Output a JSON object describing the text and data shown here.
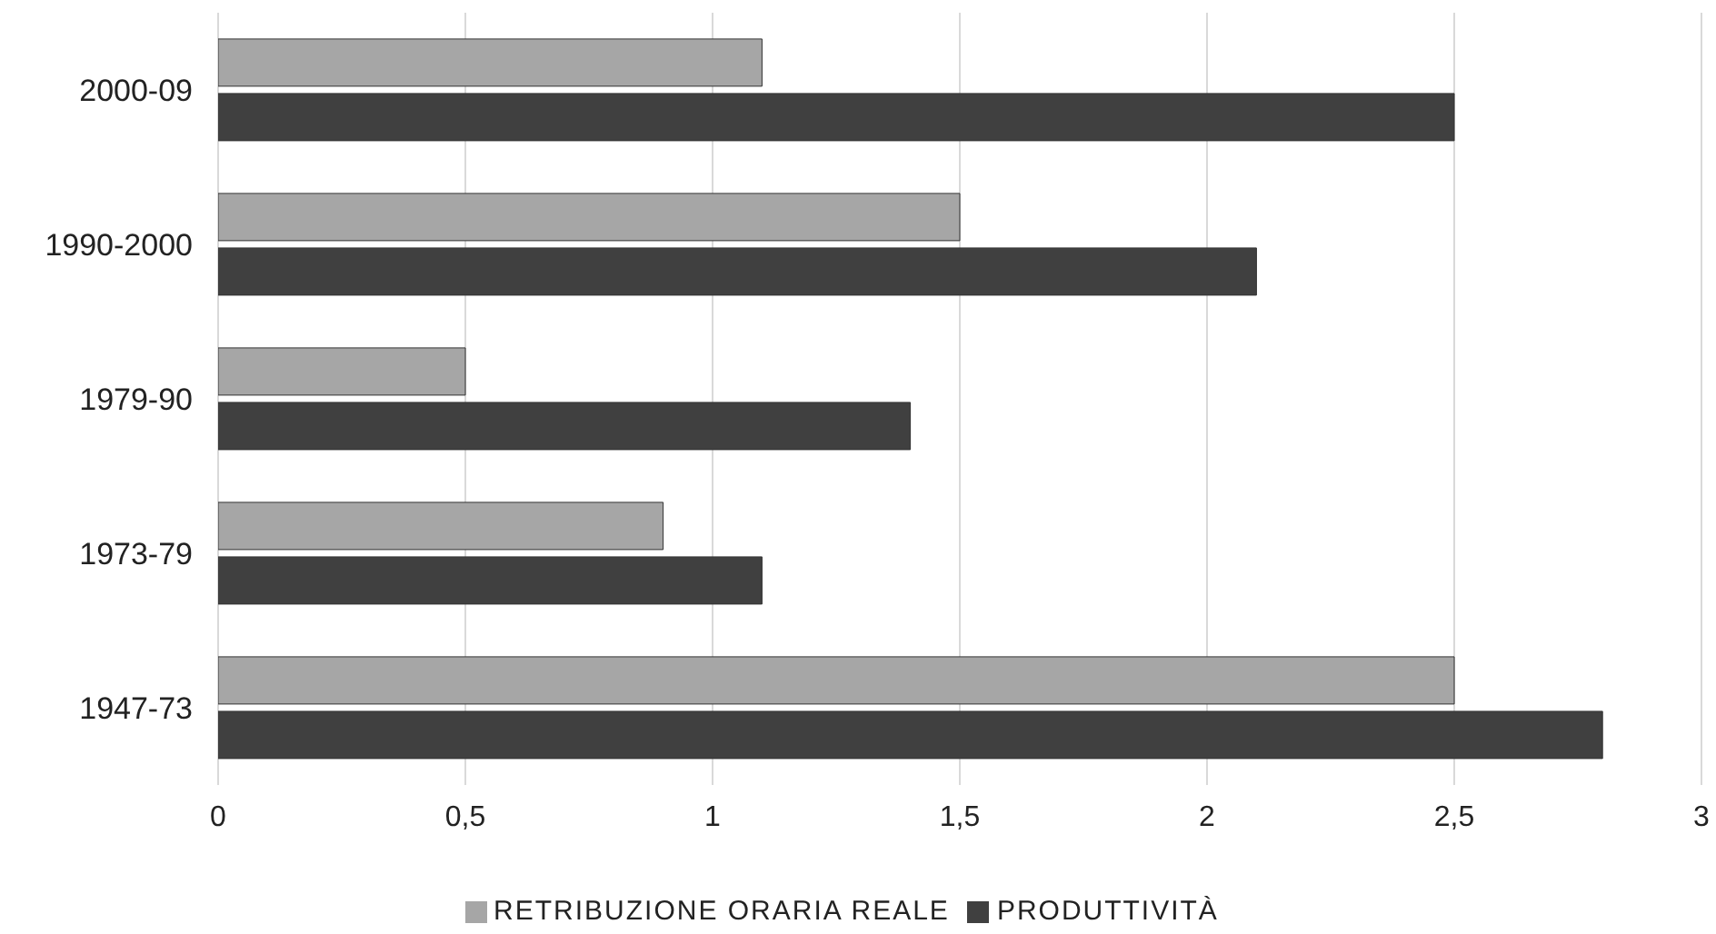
{
  "chart_data": {
    "type": "bar",
    "orientation": "horizontal",
    "categories": [
      "2000-09",
      "1990-2000",
      "1979-90",
      "1973-79",
      "1947-73"
    ],
    "series": [
      {
        "name": "RETRIBUZIONE ORARIA REALE",
        "color": "#a6a6a6",
        "values": [
          1.1,
          1.5,
          0.5,
          0.9,
          2.5
        ]
      },
      {
        "name": "PRODUTTIVITÀ",
        "color": "#404040",
        "values": [
          2.5,
          2.1,
          1.4,
          1.1,
          2.8
        ]
      }
    ],
    "xlim": [
      0,
      3
    ],
    "xticks": [
      0,
      {
        "value": 0.5,
        "label": "0,5"
      },
      1,
      {
        "value": 1.5,
        "label": "1,5"
      },
      2,
      {
        "value": 2.5,
        "label": "2,5"
      },
      3
    ],
    "grid": "x",
    "legend": "bottom"
  }
}
